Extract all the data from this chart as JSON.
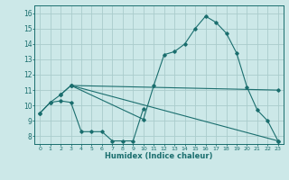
{
  "xlabel": "Humidex (Indice chaleur)",
  "bg_color": "#cce8e8",
  "grid_color": "#aacccc",
  "line_color": "#1a6e6e",
  "xlim": [
    -0.5,
    23.5
  ],
  "ylim": [
    7.5,
    16.5
  ],
  "xticks": [
    0,
    1,
    2,
    3,
    4,
    5,
    6,
    7,
    8,
    9,
    10,
    11,
    12,
    13,
    14,
    15,
    16,
    17,
    18,
    19,
    20,
    21,
    22,
    23
  ],
  "yticks": [
    8,
    9,
    10,
    11,
    12,
    13,
    14,
    15,
    16
  ],
  "series": [
    {
      "x": [
        0,
        1,
        2,
        3,
        10,
        11,
        12,
        13,
        14,
        15,
        16,
        17,
        18,
        19,
        20,
        21,
        22,
        23
      ],
      "y": [
        9.5,
        10.2,
        10.7,
        11.3,
        9.1,
        11.3,
        13.3,
        13.5,
        14.0,
        15.0,
        15.8,
        15.4,
        14.7,
        13.4,
        11.2,
        9.7,
        9.0,
        7.7
      ]
    },
    {
      "x": [
        2,
        3,
        23
      ],
      "y": [
        10.7,
        11.3,
        11.0
      ]
    },
    {
      "x": [
        3,
        23
      ],
      "y": [
        11.3,
        7.7
      ]
    },
    {
      "x": [
        0,
        1,
        2,
        3,
        4,
        5,
        6,
        7,
        8,
        9,
        10
      ],
      "y": [
        9.5,
        10.2,
        10.3,
        10.2,
        8.3,
        8.3,
        8.3,
        7.7,
        7.7,
        7.7,
        9.8
      ]
    }
  ]
}
